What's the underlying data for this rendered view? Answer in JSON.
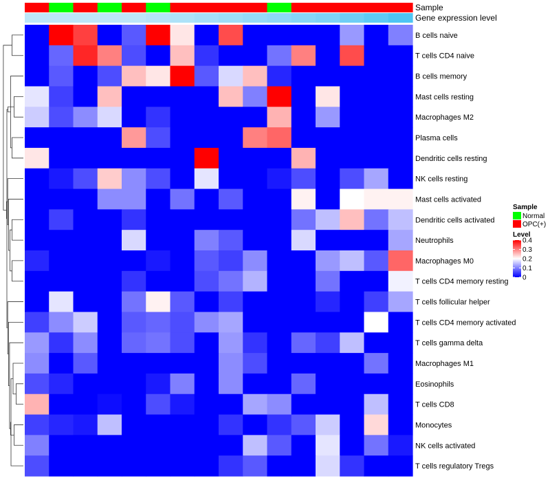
{
  "chart_data": {
    "type": "heatmap",
    "title": "",
    "color_scale": {
      "name": "Level",
      "min": 0,
      "max": 0.4,
      "low_color": "#0000ff",
      "mid_color": "#ffffff",
      "high_color": "#ff0000",
      "mid_value": 0.2,
      "ticks": [
        0,
        0.1,
        0.2,
        0.3,
        0.4
      ],
      "tick_labels": [
        "0",
        "0.1",
        "0.2",
        "0.3",
        "0.4"
      ]
    },
    "column_annotations": [
      {
        "name": "Sample",
        "values": [
          "OPC(+)",
          "Normal",
          "OPC(+)",
          "Normal",
          "OPC(+)",
          "Normal",
          "OPC(+)",
          "OPC(+)",
          "OPC(+)",
          "OPC(+)",
          "Normal",
          "OPC(+)",
          "OPC(+)",
          "OPC(+)",
          "OPC(+)",
          "OPC(+)"
        ],
        "legend": [
          {
            "label": "Normal",
            "color": "#00ff00"
          },
          {
            "label": "OPC(+)",
            "color": "#ff0000"
          }
        ]
      },
      {
        "name": "Gene expression level",
        "values": [
          0.2,
          0.2,
          0.2,
          0.2,
          0.2,
          0.25,
          0.3,
          0.35,
          0.4,
          0.45,
          0.5,
          0.55,
          0.6,
          0.7,
          0.8,
          0.9
        ],
        "low_color": "#ddf0fb",
        "high_color": "#3ec0f2"
      }
    ],
    "rows": [
      "B cells naive",
      "T cells CD4 naive",
      "B cells memory",
      "Mast cells resting",
      "Macrophages M2",
      "Plasma cells",
      "Dendritic cells resting",
      "NK cells resting",
      "Mast cells activated",
      "Dendritic cells activated",
      "Neutrophils",
      "Macrophages M0",
      "T cells CD4 memory resting",
      "T cells follicular helper",
      "T cells CD4 memory activated",
      "T cells gamma delta",
      "Macrophages M1",
      "Eosinophils",
      "T cells CD8",
      "Monocytes",
      "NK cells activated",
      "T cells regulatory  Tregs"
    ],
    "values": [
      [
        0,
        0.4,
        0.35,
        0,
        0.07,
        0.4,
        0.22,
        0,
        0.34,
        0,
        0,
        0,
        0,
        0.12,
        0,
        0.1
      ],
      [
        0,
        0.08,
        0.37,
        0.3,
        0.06,
        0,
        0.25,
        0.04,
        0,
        0,
        0.09,
        0.3,
        0,
        0.34,
        0,
        0
      ],
      [
        0,
        0.07,
        0,
        0.06,
        0.25,
        0.22,
        0.4,
        0.07,
        0.17,
        0.25,
        0.03,
        0,
        0,
        0,
        0,
        0
      ],
      [
        0.18,
        0.05,
        0,
        0.25,
        0,
        0,
        0,
        0,
        0.25,
        0.1,
        0.4,
        0,
        0.22,
        0,
        0,
        0
      ],
      [
        0.16,
        0.06,
        0.11,
        0.17,
        0,
        0.04,
        0,
        0,
        0,
        0,
        0.26,
        0,
        0.12,
        0,
        0,
        0
      ],
      [
        0,
        0,
        0,
        0,
        0.28,
        0.06,
        0,
        0,
        0,
        0.3,
        0.32,
        0,
        0,
        0,
        0,
        0
      ],
      [
        0.22,
        0,
        0,
        0,
        0,
        0,
        0,
        0.4,
        0,
        0,
        0,
        0.26,
        0,
        0,
        0,
        0
      ],
      [
        0,
        0.02,
        0.06,
        0.24,
        0.11,
        0.06,
        0,
        0.18,
        0,
        0,
        0.02,
        0.06,
        0,
        0.06,
        0.13,
        0
      ],
      [
        0,
        0,
        0,
        0.11,
        0.11,
        0,
        0.09,
        0,
        0.07,
        0,
        0,
        0.21,
        0,
        0.2,
        0.21,
        0.21
      ],
      [
        0,
        0.05,
        0,
        0,
        0.04,
        0,
        0,
        0,
        0,
        0,
        0,
        0.09,
        0.15,
        0.25,
        0.09,
        0.15
      ],
      [
        0,
        0,
        0,
        0,
        0.17,
        0,
        0,
        0.1,
        0.07,
        0,
        0,
        0.17,
        0,
        0,
        0,
        0.13
      ],
      [
        0.03,
        0,
        0,
        0,
        0,
        0.02,
        0,
        0.07,
        0.05,
        0.11,
        0,
        0,
        0.12,
        0.15,
        0.07,
        0.32
      ],
      [
        0,
        0,
        0,
        0,
        0.04,
        0,
        0,
        0.06,
        0.09,
        0.14,
        0,
        0,
        0.09,
        0,
        0,
        0.19
      ],
      [
        0,
        0.18,
        0,
        0,
        0.09,
        0.21,
        0.07,
        0,
        0.05,
        0,
        0,
        0,
        0.03,
        0,
        0.05,
        0.13
      ],
      [
        0.05,
        0.11,
        0.16,
        0,
        0.07,
        0.08,
        0.06,
        0.11,
        0.13,
        0,
        0,
        0,
        0,
        0,
        0.2,
        0
      ],
      [
        0.12,
        0.04,
        0.11,
        0,
        0.08,
        0.09,
        0.06,
        0,
        0.12,
        0.04,
        0,
        0.08,
        0.05,
        0.15,
        0,
        0
      ],
      [
        0.11,
        0,
        0.07,
        0,
        0,
        0,
        0,
        0,
        0.11,
        0.06,
        0,
        0,
        0,
        0,
        0.09,
        0
      ],
      [
        0.06,
        0.03,
        0,
        0,
        0,
        0.02,
        0.1,
        0,
        0.11,
        0,
        0,
        0.08,
        0,
        0,
        0,
        0
      ],
      [
        0.26,
        0,
        0,
        0.01,
        0,
        0.06,
        0.02,
        0,
        0,
        0.13,
        0.11,
        0,
        0,
        0,
        0.15,
        0
      ],
      [
        0.05,
        0.03,
        0.02,
        0.15,
        0,
        0,
        0,
        0,
        0.04,
        0,
        0.04,
        0.07,
        0.16,
        0,
        0.23,
        0
      ],
      [
        0.1,
        0,
        0,
        0,
        0,
        0,
        0,
        0,
        0,
        0.15,
        0.07,
        0,
        0.18,
        0,
        0.09,
        0.02
      ],
      [
        0.06,
        0,
        0,
        0,
        0,
        0,
        0,
        0,
        0.04,
        0.07,
        0,
        0,
        0.17,
        0.04,
        0,
        0
      ]
    ],
    "row_dendrogram": true,
    "legend_position": "right"
  }
}
